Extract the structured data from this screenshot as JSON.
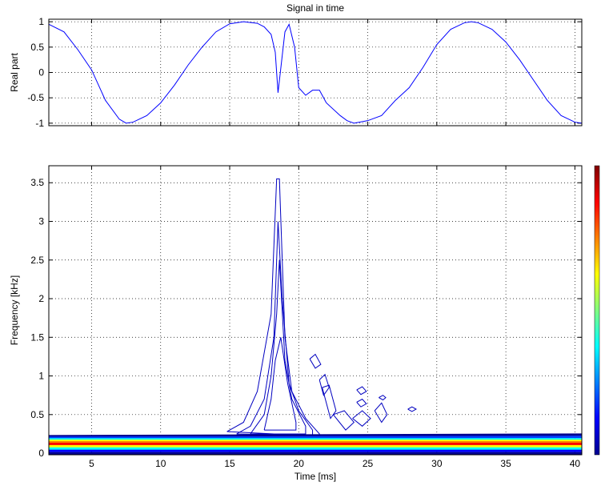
{
  "chart_data": [
    {
      "type": "line",
      "title": "Signal in time",
      "ylabel": "Real part",
      "x": [
        1.9,
        3,
        4,
        5,
        6,
        7,
        7.5,
        8,
        9,
        10,
        11,
        12,
        13,
        14,
        15,
        16,
        17,
        17.5,
        18,
        18.3,
        18.5,
        19,
        19.3,
        19.7,
        20,
        20.5,
        21,
        21.5,
        22,
        23,
        23.5,
        24,
        25,
        26,
        27,
        28,
        29,
        30,
        31,
        32,
        32.5,
        33,
        34,
        35,
        36,
        37,
        38,
        39,
        40,
        40.5
      ],
      "values": [
        0.95,
        0.8,
        0.45,
        0.05,
        -0.55,
        -0.92,
        -1,
        -0.98,
        -0.85,
        -0.6,
        -0.25,
        0.15,
        0.5,
        0.8,
        0.96,
        1,
        0.97,
        0.9,
        0.75,
        0.4,
        -0.4,
        0.8,
        0.95,
        0.5,
        -0.3,
        -0.45,
        -0.35,
        -0.35,
        -0.6,
        -0.85,
        -0.95,
        -1,
        -0.95,
        -0.85,
        -0.55,
        -0.3,
        0.1,
        0.55,
        0.85,
        0.98,
        1,
        0.98,
        0.85,
        0.6,
        0.25,
        -0.15,
        -0.55,
        -0.85,
        -0.98,
        -1
      ],
      "color": "#0000ff",
      "xlim": [
        1.9,
        40.5
      ],
      "ylim": [
        -1.05,
        1.05
      ],
      "xticks": [
        5,
        10,
        15,
        20,
        25,
        30,
        35,
        40
      ],
      "xtick_labels": false,
      "yticks": [
        -1,
        -0.5,
        0,
        0.5,
        1
      ],
      "grid": true
    },
    {
      "type": "contour",
      "xlabel": "Time [ms]",
      "ylabel": "Frequency [kHz]",
      "xlim": [
        1.9,
        40.5
      ],
      "ylim": [
        -0.02,
        3.72
      ],
      "xticks": [
        5,
        10,
        15,
        20,
        25,
        30,
        35,
        40
      ],
      "xtick_labels": true,
      "yticks": [
        0,
        0.5,
        1,
        1.5,
        2,
        2.5,
        3,
        3.5
      ],
      "grid": true,
      "colormap": [
        "#00008f",
        "#0000ff",
        "#0080ff",
        "#00ffff",
        "#80ff80",
        "#ffff00",
        "#ff8000",
        "#ff0000",
        "#800000"
      ],
      "contours": [
        {
          "color": "#0000c0",
          "x": [
            14.8,
            16,
            17,
            18,
            18.4,
            18.6,
            19,
            19.5,
            20.5,
            21.5,
            21.5,
            14.8
          ],
          "y": [
            0.28,
            0.4,
            0.8,
            1.8,
            3.55,
            3.55,
            1.5,
            0.8,
            0.45,
            0.25,
            0.22,
            0.28
          ]
        },
        {
          "color": "#0000c0",
          "x": [
            15.5,
            16.5,
            17.5,
            18.2,
            18.5,
            18.8,
            19.3,
            20,
            21,
            21,
            15.5
          ],
          "y": [
            0.25,
            0.35,
            0.7,
            1.5,
            3.0,
            2.0,
            0.9,
            0.55,
            0.3,
            0.23,
            0.25
          ]
        },
        {
          "color": "#0000c0",
          "x": [
            16.5,
            17.5,
            18,
            18.4,
            18.6,
            19,
            19.5,
            20.5,
            20.5,
            16.5
          ],
          "y": [
            0.25,
            0.5,
            1.0,
            1.8,
            2.5,
            1.2,
            0.7,
            0.35,
            0.25,
            0.25
          ]
        },
        {
          "color": "#0000c0",
          "x": [
            17.5,
            18,
            18.3,
            18.7,
            19.2,
            19.8,
            19.8,
            17.5
          ],
          "y": [
            0.3,
            0.7,
            1.2,
            1.5,
            0.9,
            0.4,
            0.3,
            0.3
          ]
        },
        {
          "color": "#0000c0",
          "x": [
            20.8,
            21.2,
            21.6,
            21.2,
            20.8
          ],
          "y": [
            1.22,
            1.28,
            1.15,
            1.1,
            1.22
          ]
        },
        {
          "color": "#0000c0",
          "x": [
            21.5,
            21.9,
            22.2,
            21.8,
            21.5
          ],
          "y": [
            0.95,
            1.02,
            0.85,
            0.75,
            0.95
          ]
        },
        {
          "color": "#0000c0",
          "x": [
            21.7,
            22.2,
            22.7,
            22.3,
            21.7
          ],
          "y": [
            0.85,
            0.88,
            0.55,
            0.45,
            0.85
          ]
        },
        {
          "color": "#0000c0",
          "x": [
            22.5,
            23.3,
            24,
            23.4,
            22.5
          ],
          "y": [
            0.5,
            0.55,
            0.4,
            0.3,
            0.5
          ]
        },
        {
          "color": "#0000c0",
          "x": [
            24.2,
            24.6,
            24.9,
            24.5,
            24.2
          ],
          "y": [
            0.82,
            0.86,
            0.8,
            0.76,
            0.82
          ]
        },
        {
          "color": "#0000c0",
          "x": [
            24.2,
            24.6,
            24.9,
            24.5,
            24.2
          ],
          "y": [
            0.66,
            0.7,
            0.64,
            0.6,
            0.66
          ]
        },
        {
          "color": "#0000c0",
          "x": [
            23.9,
            24.6,
            25.2,
            24.6,
            23.9
          ],
          "y": [
            0.45,
            0.55,
            0.45,
            0.35,
            0.45
          ]
        },
        {
          "color": "#0000c0",
          "x": [
            25.5,
            26,
            26.4,
            26,
            25.5
          ],
          "y": [
            0.55,
            0.65,
            0.5,
            0.4,
            0.55
          ]
        },
        {
          "color": "#0000c0",
          "x": [
            25.8,
            26.1,
            26.3,
            26.1,
            25.8
          ],
          "y": [
            0.72,
            0.75,
            0.72,
            0.69,
            0.72
          ]
        },
        {
          "color": "#0000c0",
          "x": [
            27.9,
            28.2,
            28.5,
            28.2,
            27.9
          ],
          "y": [
            0.57,
            0.6,
            0.57,
            0.54,
            0.57
          ]
        },
        {
          "color": "#00008f",
          "x": [
            1.9,
            40.5
          ],
          "y": [
            0.22,
            0.24
          ]
        },
        {
          "color": "#0040ff",
          "x": [
            1.9,
            40.5
          ],
          "y": [
            0.2,
            0.21
          ]
        },
        {
          "color": "#00ffff",
          "x": [
            1.9,
            40.5
          ],
          "y": [
            0.18,
            0.18
          ]
        },
        {
          "color": "#ffff00",
          "x": [
            1.9,
            40.5
          ],
          "y": [
            0.16,
            0.16
          ]
        },
        {
          "color": "#ff8000",
          "x": [
            1.9,
            40.5
          ],
          "y": [
            0.14,
            0.14
          ]
        },
        {
          "color": "#ff0000",
          "x": [
            1.9,
            40.5
          ],
          "y": [
            0.12,
            0.12
          ]
        },
        {
          "color": "#ffff00",
          "x": [
            1.9,
            40.5
          ],
          "y": [
            0.09,
            0.09
          ]
        },
        {
          "color": "#00ffff",
          "x": [
            1.9,
            40.5
          ],
          "y": [
            0.06,
            0.06
          ]
        },
        {
          "color": "#0000ff",
          "x": [
            1.9,
            40.5
          ],
          "y": [
            0.03,
            0.03
          ]
        },
        {
          "color": "#00008f",
          "x": [
            1.9,
            40.5
          ],
          "y": [
            0.0,
            0.0
          ]
        }
      ]
    }
  ]
}
